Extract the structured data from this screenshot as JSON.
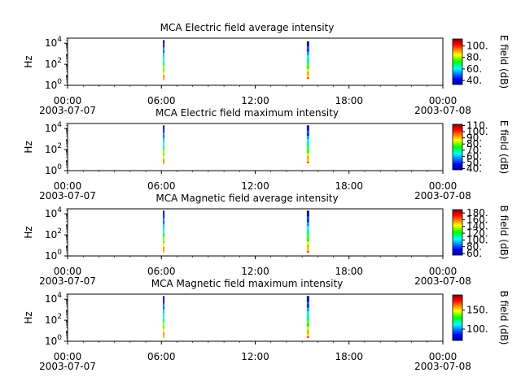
{
  "chart_data": [
    {
      "type": "heatmap",
      "title": "MCA  Electric field average intensity",
      "ylabel": "Hz",
      "colorbar_label": "E field (dB)",
      "colorbar_ticks": [
        "40.",
        "60.",
        "80.",
        "100."
      ],
      "colorbar_range": [
        33,
        112
      ],
      "yscale": "log",
      "ylim": [
        1,
        30000
      ],
      "y_ticks": [
        {
          "base": "10",
          "exp": "0"
        },
        {
          "base": "10",
          "exp": "2"
        },
        {
          "base": "10",
          "exp": "4"
        }
      ],
      "x_ticks": [
        "00:00",
        "06:00",
        "12:00",
        "18:00",
        "00:00"
      ],
      "x_tick_hours": [
        0,
        6,
        12,
        18,
        24
      ],
      "x_dates": [
        {
          "hour": 0,
          "label": "2003-07-07"
        },
        {
          "hour": 24,
          "label": "2003-07-08"
        }
      ],
      "bursts": [
        {
          "start_hour": 6.1,
          "end_hour": 6.2,
          "freq_min_hz": 3,
          "freq_max_hz": 20000
        },
        {
          "start_hour": 15.3,
          "end_hour": 15.45,
          "freq_min_hz": 4,
          "freq_max_hz": 15000
        }
      ]
    },
    {
      "type": "heatmap",
      "title": "MCA  Electric field maximum intensity",
      "ylabel": "Hz",
      "colorbar_label": "E field (dB)",
      "colorbar_ticks": [
        "40.",
        "50.",
        "60.",
        "70.",
        "80.",
        "90.",
        "100.",
        "110."
      ],
      "colorbar_range": [
        38,
        112
      ],
      "yscale": "log",
      "ylim": [
        1,
        30000
      ],
      "y_ticks": [
        {
          "base": "10",
          "exp": "0"
        },
        {
          "base": "10",
          "exp": "2"
        },
        {
          "base": "10",
          "exp": "4"
        }
      ],
      "x_ticks": [
        "00:00",
        "06:00",
        "12:00",
        "18:00",
        "00:00"
      ],
      "x_tick_hours": [
        0,
        6,
        12,
        18,
        24
      ],
      "x_dates": [
        {
          "hour": 0,
          "label": "2003-07-07"
        },
        {
          "hour": 24,
          "label": "2003-07-08"
        }
      ],
      "bursts": [
        {
          "start_hour": 6.1,
          "end_hour": 6.2,
          "freq_min_hz": 4,
          "freq_max_hz": 20000
        },
        {
          "start_hour": 15.3,
          "end_hour": 15.45,
          "freq_min_hz": 5,
          "freq_max_hz": 20000
        }
      ]
    },
    {
      "type": "heatmap",
      "title": "MCA  Magnetic field average intensity",
      "ylabel": "Hz",
      "colorbar_label": "B field (dB)",
      "colorbar_ticks": [
        "60.",
        "80.",
        "100.",
        "120.",
        "140.",
        "160.",
        "180."
      ],
      "colorbar_range": [
        55,
        190
      ],
      "yscale": "log",
      "ylim": [
        1,
        30000
      ],
      "y_ticks": [
        {
          "base": "10",
          "exp": "0"
        },
        {
          "base": "10",
          "exp": "2"
        },
        {
          "base": "10",
          "exp": "4"
        }
      ],
      "x_ticks": [
        "00:00",
        "06:00",
        "12:00",
        "18:00",
        "00:00"
      ],
      "x_tick_hours": [
        0,
        6,
        12,
        18,
        24
      ],
      "x_dates": [
        {
          "hour": 0,
          "label": "2003-07-07"
        },
        {
          "hour": 24,
          "label": "2003-07-08"
        }
      ],
      "bursts": [
        {
          "start_hour": 6.1,
          "end_hour": 6.2,
          "freq_min_hz": 2,
          "freq_max_hz": 20000
        },
        {
          "start_hour": 15.3,
          "end_hour": 15.45,
          "freq_min_hz": 2,
          "freq_max_hz": 20000
        }
      ]
    },
    {
      "type": "heatmap",
      "title": "MCA  Magnetic field maximum intensity",
      "ylabel": "Hz",
      "colorbar_label": "B field (dB)",
      "colorbar_ticks": [
        "100.",
        "150."
      ],
      "colorbar_range": [
        70,
        190
      ],
      "yscale": "log",
      "ylim": [
        1,
        30000
      ],
      "y_ticks": [
        {
          "base": "10",
          "exp": "0"
        },
        {
          "base": "10",
          "exp": "2"
        },
        {
          "base": "10",
          "exp": "4"
        }
      ],
      "x_ticks": [
        "00:00",
        "06:00",
        "12:00",
        "18:00",
        "00:00"
      ],
      "x_tick_hours": [
        0,
        6,
        12,
        18,
        24
      ],
      "x_dates": [
        {
          "hour": 0,
          "label": "2003-07-07"
        },
        {
          "hour": 24,
          "label": "2003-07-08"
        }
      ],
      "bursts": [
        {
          "start_hour": 6.1,
          "end_hour": 6.2,
          "freq_min_hz": 2,
          "freq_max_hz": 20000
        },
        {
          "start_hour": 15.3,
          "end_hour": 15.45,
          "freq_min_hz": 2,
          "freq_max_hz": 20000
        }
      ]
    }
  ]
}
